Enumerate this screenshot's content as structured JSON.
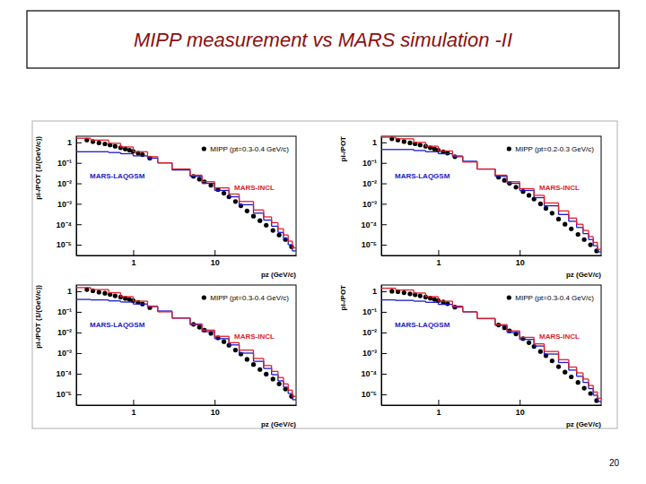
{
  "title": "MIPP measurement vs MARS simulation -II",
  "page_number": 20,
  "chart_data": [
    {
      "type": "scatter",
      "log": true,
      "x_label": "pz (GeV/c)",
      "y_label": "pi-/POT (1/(GeV/c))",
      "xlim": [
        0.2,
        100
      ],
      "ylim": [
        3e-06,
        2
      ],
      "xticks": [
        1,
        10
      ],
      "yticks": [
        {
          "value": 1e-05,
          "label": "10⁻⁵"
        },
        {
          "value": 0.0001,
          "label": "10⁻⁴"
        },
        {
          "value": 0.001,
          "label": "10⁻³"
        },
        {
          "value": 0.01,
          "label": "10⁻²"
        },
        {
          "value": 0.1,
          "label": "10⁻¹"
        },
        1
      ],
      "series": [
        {
          "name": "MIPP (pt=0.3-0.4 GeV/c)",
          "type": "scatter",
          "marker": "circle",
          "color": "#000000",
          "x": [
            0.27,
            0.32,
            0.38,
            0.45,
            0.52,
            0.6,
            0.7,
            0.8,
            0.9,
            1.0,
            1.15,
            1.3,
            1.6,
            5.5,
            6.5,
            7.5,
            9,
            11,
            13,
            15,
            18,
            21,
            25,
            30,
            36,
            43,
            52,
            62,
            74,
            88
          ],
          "values": [
            1.3,
            1.1,
            0.95,
            0.85,
            0.75,
            0.65,
            0.55,
            0.48,
            0.42,
            0.37,
            0.3,
            0.25,
            0.17,
            0.022,
            0.016,
            0.012,
            0.008,
            0.005,
            0.0033,
            0.0022,
            0.0013,
            0.0008,
            0.00045,
            0.00025,
            0.00015,
            9e-05,
            5e-05,
            3e-05,
            1.8e-05,
            8e-06
          ]
        },
        {
          "name": "MARS-LAQGSM",
          "type": "step",
          "color": "#1a1acc",
          "bins": [
            0.2,
            0.3,
            0.5,
            0.7,
            1,
            1.5,
            2,
            3,
            5,
            7,
            10,
            15,
            20,
            30,
            40,
            50,
            60,
            70,
            80,
            90,
            100
          ],
          "values": [
            0.35,
            0.35,
            0.32,
            0.28,
            0.22,
            0.17,
            0.1,
            0.045,
            0.022,
            0.01,
            0.0045,
            0.0022,
            0.0009,
            0.00035,
            0.00016,
            8e-05,
            4e-05,
            2e-05,
            1e-05,
            5e-06
          ]
        },
        {
          "name": "MARS-INCL",
          "type": "step",
          "color": "#e0202a",
          "bins": [
            0.2,
            0.3,
            0.5,
            0.7,
            1,
            1.5,
            2,
            3,
            5,
            7,
            10,
            15,
            20,
            30,
            40,
            50,
            60,
            70,
            80,
            90,
            100
          ],
          "values": [
            1.6,
            1.3,
            0.9,
            0.6,
            0.35,
            0.2,
            0.1,
            0.05,
            0.025,
            0.012,
            0.006,
            0.003,
            0.0013,
            0.0005,
            0.00023,
            0.00012,
            6e-05,
            3e-05,
            1.5e-05,
            7e-06
          ]
        }
      ]
    },
    {
      "type": "scatter",
      "log": true,
      "x_label": "pz (GeV/c)",
      "y_label": "pi-/POT",
      "xlim": [
        0.2,
        100
      ],
      "ylim": [
        3e-06,
        2
      ],
      "xticks": [
        1,
        10
      ],
      "yticks": [
        {
          "value": 1e-05,
          "label": "10⁻⁵"
        },
        {
          "value": 0.0001,
          "label": "10⁻⁴"
        },
        {
          "value": 0.001,
          "label": "10⁻³"
        },
        {
          "value": 0.01,
          "label": "10⁻²"
        },
        {
          "value": 0.1,
          "label": "10⁻¹"
        },
        1
      ],
      "series": [
        {
          "name": "MIPP (pt=0.2-0.3 GeV/c)",
          "type": "scatter",
          "marker": "circle",
          "color": "#000000",
          "x": [
            0.27,
            0.32,
            0.38,
            0.45,
            0.52,
            0.6,
            0.7,
            0.8,
            0.9,
            1.0,
            1.15,
            1.3,
            1.6,
            5.5,
            6.5,
            7.5,
            9,
            11,
            13,
            15,
            18,
            21,
            25,
            30,
            36,
            43,
            52,
            62,
            74,
            88
          ],
          "values": [
            1.5,
            1.3,
            1.1,
            0.95,
            0.85,
            0.75,
            0.65,
            0.55,
            0.48,
            0.42,
            0.35,
            0.3,
            0.2,
            0.02,
            0.014,
            0.01,
            0.0065,
            0.004,
            0.0026,
            0.0017,
            0.001,
            0.0006,
            0.00035,
            0.00018,
            0.0001,
            6e-05,
            3.2e-05,
            1.8e-05,
            1e-05,
            5e-06
          ]
        },
        {
          "name": "MARS-LAQGSM",
          "type": "step",
          "color": "#1a1acc",
          "bins": [
            0.2,
            0.3,
            0.5,
            0.7,
            1,
            1.5,
            2,
            3,
            5,
            7,
            10,
            15,
            20,
            30,
            40,
            50,
            60,
            70,
            80,
            90,
            100
          ],
          "values": [
            0.45,
            0.45,
            0.4,
            0.35,
            0.28,
            0.2,
            0.12,
            0.05,
            0.022,
            0.01,
            0.0045,
            0.002,
            0.0008,
            0.0003,
            0.00014,
            7e-05,
            3.5e-05,
            1.8e-05,
            9e-06,
            4.5e-06
          ]
        },
        {
          "name": "MARS-INCL",
          "type": "step",
          "color": "#e0202a",
          "bins": [
            0.2,
            0.3,
            0.5,
            0.7,
            1,
            1.5,
            2,
            3,
            5,
            7,
            10,
            15,
            20,
            30,
            40,
            50,
            60,
            70,
            80,
            90,
            100
          ],
          "values": [
            1.8,
            1.5,
            1.0,
            0.65,
            0.38,
            0.22,
            0.11,
            0.05,
            0.025,
            0.012,
            0.0055,
            0.0026,
            0.0011,
            0.00045,
            0.0002,
            0.0001,
            5e-05,
            2.5e-05,
            1.3e-05,
            6e-06
          ]
        }
      ]
    },
    {
      "type": "scatter",
      "log": true,
      "x_label": "pz (GeV/c)",
      "y_label": "pi-/POT (1/(GeV/c))",
      "xlim": [
        0.2,
        100
      ],
      "ylim": [
        3e-06,
        2
      ],
      "xticks": [
        1,
        10
      ],
      "yticks": [
        {
          "value": 1e-05,
          "label": "10⁻⁵"
        },
        {
          "value": 0.0001,
          "label": "10⁻⁴"
        },
        {
          "value": 0.001,
          "label": "10⁻³"
        },
        {
          "value": 0.01,
          "label": "10⁻²"
        },
        {
          "value": 0.1,
          "label": "10⁻¹"
        },
        1
      ],
      "series": [
        {
          "name": "MIPP (pt=0.3-0.4 GeV/c)",
          "type": "scatter",
          "marker": "circle",
          "color": "#000000",
          "x": [
            0.27,
            0.32,
            0.38,
            0.45,
            0.52,
            0.6,
            0.7,
            0.8,
            0.9,
            1.0,
            1.15,
            1.3,
            1.6,
            5.5,
            6.5,
            7.5,
            9,
            11,
            13,
            15,
            18,
            21,
            25,
            30,
            36,
            43,
            52,
            62,
            74,
            88
          ],
          "values": [
            1.2,
            1.05,
            0.9,
            0.8,
            0.7,
            0.6,
            0.52,
            0.45,
            0.4,
            0.35,
            0.29,
            0.24,
            0.16,
            0.025,
            0.018,
            0.013,
            0.009,
            0.0055,
            0.0036,
            0.0024,
            0.0014,
            0.0009,
            0.0005,
            0.00028,
            0.00016,
            9.5e-05,
            5.5e-05,
            3.2e-05,
            1.8e-05,
            8e-06
          ]
        },
        {
          "name": "MARS-LAQGSM",
          "type": "step",
          "color": "#1a1acc",
          "bins": [
            0.2,
            0.3,
            0.5,
            0.7,
            1,
            1.5,
            2,
            3,
            5,
            7,
            10,
            15,
            20,
            30,
            40,
            50,
            60,
            70,
            80,
            90,
            100
          ],
          "values": [
            0.4,
            0.38,
            0.34,
            0.3,
            0.24,
            0.18,
            0.11,
            0.05,
            0.024,
            0.011,
            0.005,
            0.0025,
            0.001,
            0.0004,
            0.00018,
            9e-05,
            4.5e-05,
            2.2e-05,
            1.1e-05,
            5.5e-06
          ]
        },
        {
          "name": "MARS-INCL",
          "type": "step",
          "color": "#e0202a",
          "bins": [
            0.2,
            0.3,
            0.5,
            0.7,
            1,
            1.5,
            2,
            3,
            5,
            7,
            10,
            15,
            20,
            30,
            40,
            50,
            60,
            70,
            80,
            90,
            100
          ],
          "values": [
            1.5,
            1.2,
            0.85,
            0.55,
            0.33,
            0.19,
            0.1,
            0.05,
            0.026,
            0.013,
            0.0065,
            0.0032,
            0.0014,
            0.00055,
            0.00025,
            0.00013,
            6.5e-05,
            3.2e-05,
            1.6e-05,
            8e-06
          ]
        }
      ]
    },
    {
      "type": "scatter",
      "log": true,
      "x_label": "pz (GeV/c)",
      "y_label": "pi-/POT",
      "xlim": [
        0.2,
        100
      ],
      "ylim": [
        3e-06,
        2
      ],
      "xticks": [
        1,
        10
      ],
      "yticks": [
        {
          "value": 1e-05,
          "label": "10⁻⁵"
        },
        {
          "value": 0.0001,
          "label": "10⁻⁴"
        },
        {
          "value": 0.001,
          "label": "10⁻³"
        },
        {
          "value": 0.01,
          "label": "10⁻²"
        },
        {
          "value": 0.1,
          "label": "10⁻¹"
        },
        1
      ],
      "series": [
        {
          "name": "MIPP (pt=0.3-0.4 GeV/c)",
          "type": "scatter",
          "marker": "circle",
          "color": "#000000",
          "x": [
            0.27,
            0.32,
            0.38,
            0.45,
            0.52,
            0.6,
            0.7,
            0.8,
            0.9,
            1.0,
            1.15,
            1.3,
            1.6,
            5.5,
            6.5,
            7.5,
            9,
            11,
            13,
            15,
            18,
            21,
            25,
            30,
            36,
            43,
            52,
            62,
            74,
            88
          ],
          "values": [
            1.0,
            0.95,
            0.85,
            0.75,
            0.68,
            0.6,
            0.52,
            0.46,
            0.4,
            0.35,
            0.3,
            0.25,
            0.17,
            0.023,
            0.017,
            0.012,
            0.0085,
            0.005,
            0.0032,
            0.0021,
            0.0012,
            0.00075,
            0.00042,
            0.00022,
            0.00012,
            7e-05,
            3.8e-05,
            2e-05,
            1.1e-05,
            5e-06
          ]
        },
        {
          "name": "MARS-LAQGSM",
          "type": "step",
          "color": "#1a1acc",
          "bins": [
            0.2,
            0.3,
            0.5,
            0.7,
            1,
            1.5,
            2,
            3,
            5,
            7,
            10,
            15,
            20,
            30,
            40,
            50,
            60,
            70,
            80,
            90,
            100
          ],
          "values": [
            0.38,
            0.36,
            0.33,
            0.29,
            0.23,
            0.17,
            0.1,
            0.047,
            0.022,
            0.01,
            0.0046,
            0.0022,
            0.0009,
            0.00035,
            0.00015,
            7.5e-05,
            3.8e-05,
            1.9e-05,
            9e-06,
            4.5e-06
          ]
        },
        {
          "name": "MARS-INCL",
          "type": "step",
          "color": "#e0202a",
          "bins": [
            0.2,
            0.3,
            0.5,
            0.7,
            1,
            1.5,
            2,
            3,
            5,
            7,
            10,
            15,
            20,
            30,
            40,
            50,
            60,
            70,
            80,
            90,
            100
          ],
          "values": [
            1.4,
            1.15,
            0.82,
            0.55,
            0.33,
            0.19,
            0.1,
            0.048,
            0.024,
            0.012,
            0.0058,
            0.0028,
            0.0012,
            0.00048,
            0.00021,
            0.00011,
            5.5e-05,
            2.7e-05,
            1.3e-05,
            6.5e-06
          ]
        }
      ]
    }
  ]
}
